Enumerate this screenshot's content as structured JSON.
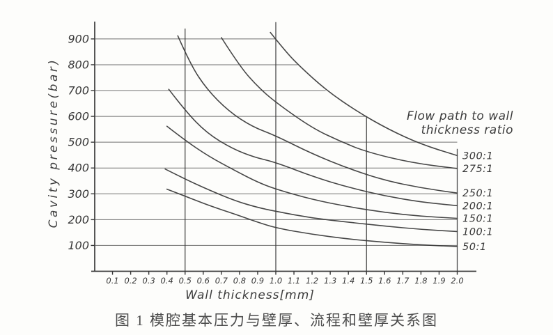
{
  "figure": {
    "caption": "图 1 模腔基本压力与壁厚、流程和壁厚关系图"
  },
  "chart_data": {
    "type": "line",
    "title": "图 1 模腔基本压力与壁厚、流程和壁厚关系图",
    "xlabel": "Wall thickness[mm]",
    "ylabel": "Cavity pressure(bar)",
    "legend_title": [
      "Flow path to wall",
      "thickness ratio"
    ],
    "legend_position": "right",
    "grid": "horizontal",
    "xlim": [
      0,
      2.1
    ],
    "ylim": [
      0,
      980
    ],
    "x_ticks": [
      0.1,
      0.2,
      0.3,
      0.4,
      0.5,
      0.6,
      0.7,
      0.8,
      0.9,
      1.0,
      1.1,
      1.2,
      1.3,
      1.4,
      1.5,
      1.6,
      1.7,
      1.8,
      1.9,
      2.0
    ],
    "y_ticks": [
      100,
      200,
      300,
      400,
      500,
      600,
      700,
      800,
      900
    ],
    "gridlines": [
      {
        "p": 900,
        "t_end": 1.0
      },
      {
        "p": 800,
        "t_end": 1.12
      },
      {
        "p": 700,
        "t_end": 1.275
      },
      {
        "p": 600,
        "t_end": 1.5
      },
      {
        "p": 500,
        "t_end": 2.0
      },
      {
        "p": 400,
        "t_end": 2.0
      },
      {
        "p": 300,
        "t_end": 2.0
      },
      {
        "p": 200,
        "t_end": 2.0
      },
      {
        "p": 100,
        "t_end": 2.0
      }
    ],
    "reference_vlines": [
      {
        "t": 0.5,
        "p_top": 940
      },
      {
        "t": 1.0,
        "p_top": 965
      },
      {
        "t": 1.5,
        "p_top": 600
      },
      {
        "t": 2.0,
        "p_top": 474
      }
    ],
    "series": [
      {
        "name": "300:1",
        "points": [
          [
            0.97,
            925
          ],
          [
            1.05,
            855
          ],
          [
            1.13,
            795
          ],
          [
            1.28,
            700
          ],
          [
            1.45,
            618
          ],
          [
            1.62,
            550
          ],
          [
            1.8,
            492
          ],
          [
            2.0,
            448
          ]
        ]
      },
      {
        "name": "275:1",
        "points": [
          [
            0.7,
            905
          ],
          [
            0.8,
            795
          ],
          [
            0.9,
            715
          ],
          [
            1.0,
            654
          ],
          [
            1.2,
            555
          ],
          [
            1.35,
            505
          ],
          [
            1.5,
            462
          ],
          [
            1.75,
            420
          ],
          [
            2.0,
            398
          ]
        ]
      },
      {
        "name": "250:1",
        "points": [
          [
            0.46,
            912
          ],
          [
            0.53,
            800
          ],
          [
            0.62,
            705
          ],
          [
            0.74,
            620
          ],
          [
            0.87,
            560
          ],
          [
            1.0,
            525
          ],
          [
            1.2,
            455
          ],
          [
            1.4,
            398
          ],
          [
            1.6,
            352
          ],
          [
            1.8,
            323
          ],
          [
            2.0,
            303
          ]
        ]
      },
      {
        "name": "200:1",
        "points": [
          [
            0.41,
            705
          ],
          [
            0.5,
            622
          ],
          [
            0.62,
            535
          ],
          [
            0.76,
            475
          ],
          [
            0.88,
            442
          ],
          [
            1.0,
            422
          ],
          [
            1.2,
            368
          ],
          [
            1.4,
            325
          ],
          [
            1.6,
            292
          ],
          [
            1.8,
            268
          ],
          [
            2.0,
            254
          ]
        ]
      },
      {
        "name": "150:1",
        "points": [
          [
            0.4,
            562
          ],
          [
            0.5,
            507
          ],
          [
            0.63,
            445
          ],
          [
            0.78,
            388
          ],
          [
            0.9,
            345
          ],
          [
            1.0,
            318
          ],
          [
            1.2,
            278
          ],
          [
            1.4,
            250
          ],
          [
            1.6,
            228
          ],
          [
            1.8,
            213
          ],
          [
            2.0,
            205
          ]
        ]
      },
      {
        "name": "100:1",
        "points": [
          [
            0.39,
            396
          ],
          [
            0.5,
            357
          ],
          [
            0.63,
            315
          ],
          [
            0.78,
            272
          ],
          [
            0.9,
            247
          ],
          [
            1.0,
            232
          ],
          [
            1.2,
            206
          ],
          [
            1.4,
            190
          ],
          [
            1.6,
            175
          ],
          [
            1.8,
            162
          ],
          [
            2.0,
            154
          ]
        ]
      },
      {
        "name": "50:1",
        "points": [
          [
            0.4,
            318
          ],
          [
            0.5,
            291
          ],
          [
            0.63,
            255
          ],
          [
            0.78,
            220
          ],
          [
            0.9,
            190
          ],
          [
            1.0,
            168
          ],
          [
            1.2,
            143
          ],
          [
            1.4,
            125
          ],
          [
            1.6,
            112
          ],
          [
            1.8,
            102
          ],
          [
            2.0,
            96
          ]
        ]
      }
    ],
    "colors": {
      "ink": "#383838",
      "grid": "#4e4e4e",
      "curve": "#3c3c3c",
      "paper": "#fdfdfb"
    }
  }
}
